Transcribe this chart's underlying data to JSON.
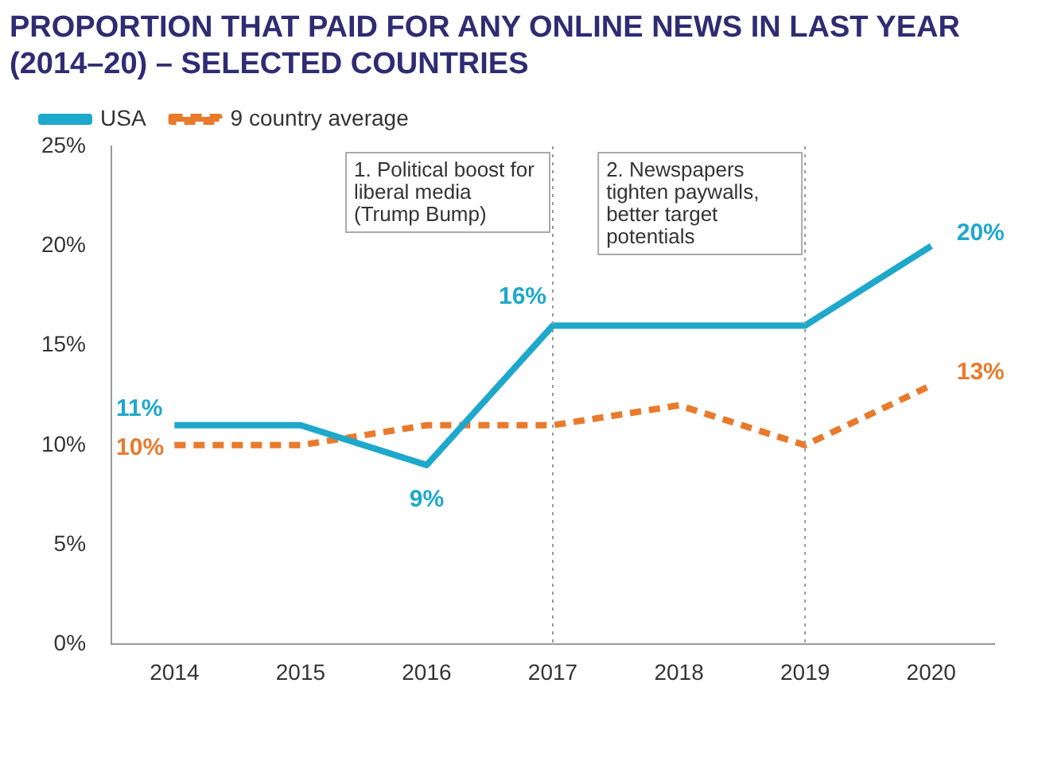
{
  "chart_data": {
    "type": "line",
    "title": "PROPORTION THAT PAID FOR ANY ONLINE NEWS IN LAST YEAR (2014–20) – SELECTED COUNTRIES",
    "categories": [
      "2014",
      "2015",
      "2016",
      "2017",
      "2018",
      "2019",
      "2020"
    ],
    "series": [
      {
        "name": "USA",
        "color": "#1ea8cb",
        "values": [
          11,
          11,
          9,
          16,
          16,
          16,
          20
        ],
        "value_labels": [
          "11%",
          null,
          "9%",
          "16%",
          null,
          null,
          "20%"
        ],
        "line_style": "solid"
      },
      {
        "name": "9 country average",
        "color": "#e97a2c",
        "values": [
          10,
          10,
          11,
          11,
          12,
          10,
          13
        ],
        "value_labels": [
          "10%",
          null,
          null,
          null,
          null,
          null,
          "13%"
        ],
        "line_style": "dashed"
      }
    ],
    "ylim": [
      0,
      25
    ],
    "yticks": [
      {
        "value": 0,
        "label": "0%"
      },
      {
        "value": 5,
        "label": "5%"
      },
      {
        "value": 10,
        "label": "10%"
      },
      {
        "value": 15,
        "label": "15%"
      },
      {
        "value": 20,
        "label": "20%"
      },
      {
        "value": 25,
        "label": "25%"
      }
    ],
    "ref_lines": [
      {
        "axis": "x",
        "value": "2017",
        "label": "1. Political boost for liberal media (Trump Bump)",
        "line_style": "dotted"
      },
      {
        "axis": "x",
        "value": "2019",
        "label": "2. Newspapers tighten paywalls, better target potentials",
        "line_style": "dotted"
      }
    ],
    "grid": false,
    "legend": "top left",
    "marker": "none"
  }
}
